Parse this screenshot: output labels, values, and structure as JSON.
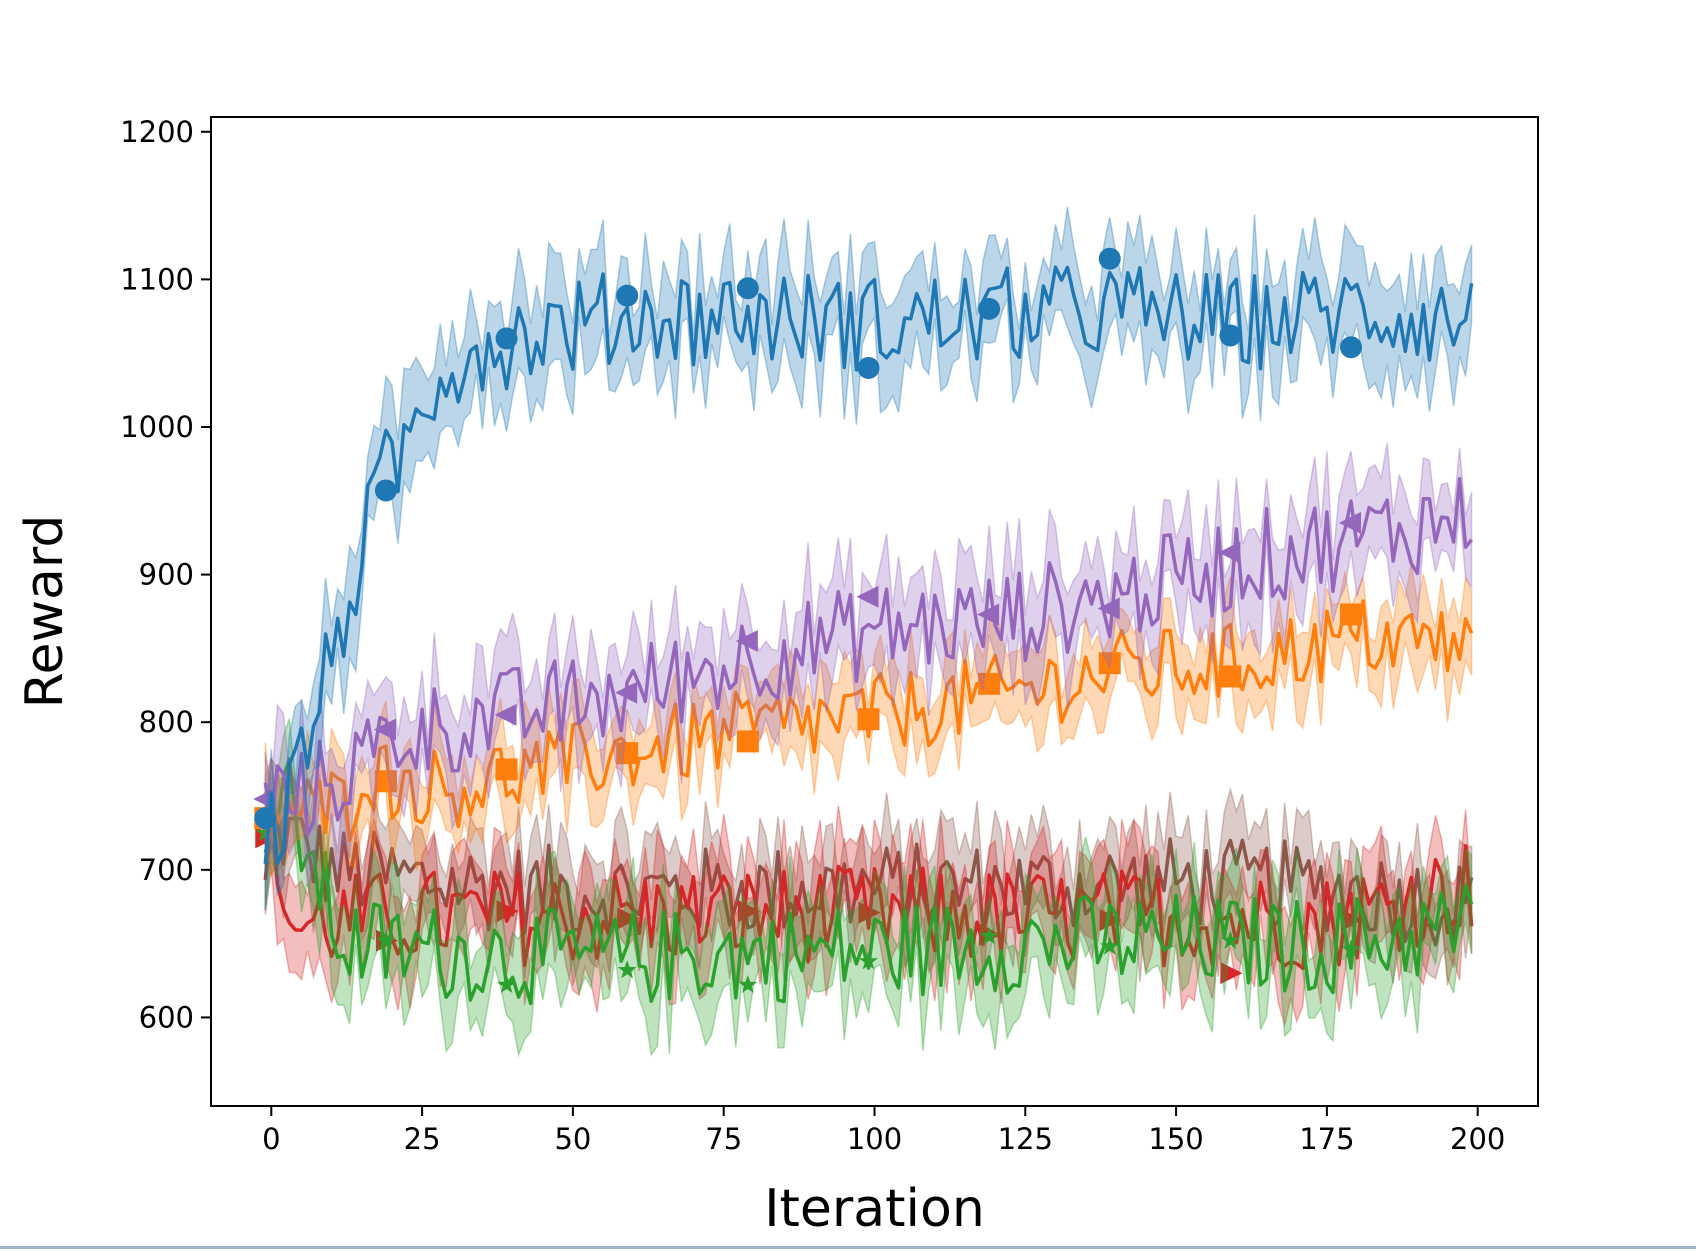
{
  "chart_data": {
    "type": "line",
    "xlabel": "Iteration",
    "ylabel": "Reward",
    "xlim": [
      -10,
      210
    ],
    "ylim": [
      540,
      1210
    ],
    "xticks": [
      0,
      25,
      50,
      75,
      100,
      125,
      150,
      175,
      200
    ],
    "yticks": [
      600,
      700,
      800,
      900,
      1000,
      1100,
      1200
    ],
    "grid": false,
    "legend": "none",
    "x_range": [
      -1,
      199
    ],
    "marker_every": 20,
    "series": [
      {
        "color": "#1f77b4",
        "marker": "circle",
        "band_width": 30,
        "mean_knots": [
          [
            -1,
            730
          ],
          [
            2,
            730
          ],
          [
            5,
            780
          ],
          [
            10,
            840
          ],
          [
            14,
            900
          ],
          [
            18,
            960
          ],
          [
            22,
            985
          ],
          [
            28,
            1040
          ],
          [
            35,
            1055
          ],
          [
            45,
            1065
          ],
          [
            60,
            1075
          ],
          [
            80,
            1075
          ],
          [
            100,
            1070
          ],
          [
            120,
            1075
          ],
          [
            140,
            1080
          ],
          [
            160,
            1070
          ],
          [
            180,
            1080
          ],
          [
            199,
            1070
          ]
        ],
        "marker_values": [
          735,
          957,
          1060,
          1089,
          1094,
          1040,
          1080,
          1114,
          1062,
          1054
        ]
      },
      {
        "color": "#ff7f0e",
        "marker": "square",
        "band_width": 25,
        "mean_knots": [
          [
            -1,
            735
          ],
          [
            5,
            740
          ],
          [
            13,
            745
          ],
          [
            15,
            770
          ],
          [
            20,
            760
          ],
          [
            30,
            755
          ],
          [
            40,
            765
          ],
          [
            60,
            780
          ],
          [
            80,
            795
          ],
          [
            100,
            805
          ],
          [
            120,
            818
          ],
          [
            140,
            835
          ],
          [
            160,
            840
          ],
          [
            180,
            858
          ],
          [
            199,
            852
          ]
        ],
        "marker_values": [
          735,
          760,
          768,
          779,
          787,
          802,
          826,
          840,
          831,
          873
        ]
      },
      {
        "color": "#2ca02c",
        "marker": "star",
        "band_width": 30,
        "mean_knots": [
          [
            -1,
            725
          ],
          [
            3,
            745
          ],
          [
            8,
            690
          ],
          [
            12,
            650
          ],
          [
            25,
            645
          ],
          [
            50,
            640
          ],
          [
            75,
            642
          ],
          [
            100,
            645
          ],
          [
            125,
            650
          ],
          [
            150,
            652
          ],
          [
            175,
            648
          ],
          [
            199,
            662
          ]
        ],
        "marker_values": [
          725,
          652,
          622,
          632,
          622,
          638,
          655,
          648,
          652,
          646
        ]
      },
      {
        "color": "#d62728",
        "marker": "triangle-right",
        "band_width": 30,
        "mean_knots": [
          [
            -1,
            722
          ],
          [
            1,
            700
          ],
          [
            4,
            660
          ],
          [
            10,
            665
          ],
          [
            25,
            668
          ],
          [
            50,
            668
          ],
          [
            75,
            670
          ],
          [
            100,
            670
          ],
          [
            125,
            668
          ],
          [
            150,
            668
          ],
          [
            175,
            665
          ],
          [
            199,
            690
          ]
        ],
        "marker_values": [
          722,
          652,
          672,
          667,
          672,
          671,
          656,
          666,
          630,
          666
        ]
      },
      {
        "color": "#9467bd",
        "marker": "triangle-left",
        "band_width": 30,
        "mean_knots": [
          [
            -1,
            748
          ],
          [
            5,
            750
          ],
          [
            12,
            765
          ],
          [
            20,
            790
          ],
          [
            40,
            805
          ],
          [
            60,
            820
          ],
          [
            80,
            845
          ],
          [
            100,
            862
          ],
          [
            120,
            870
          ],
          [
            140,
            885
          ],
          [
            160,
            908
          ],
          [
            180,
            925
          ],
          [
            199,
            940
          ]
        ],
        "marker_values": [
          748,
          795,
          805,
          820,
          855,
          885,
          873,
          877,
          915,
          935
        ]
      },
      {
        "color": "#8c564b",
        "marker": "none",
        "band_width": 28,
        "mean_knots": [
          [
            -1,
            730
          ],
          [
            4,
            720
          ],
          [
            10,
            700
          ],
          [
            25,
            692
          ],
          [
            50,
            685
          ],
          [
            75,
            685
          ],
          [
            100,
            688
          ],
          [
            125,
            688
          ],
          [
            150,
            692
          ],
          [
            175,
            688
          ],
          [
            199,
            676
          ]
        ],
        "marker_values": []
      }
    ]
  }
}
